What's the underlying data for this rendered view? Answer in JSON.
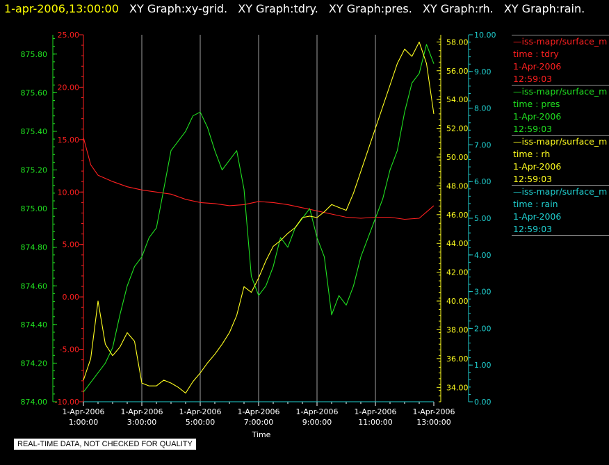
{
  "header": {
    "timestamp": "1-apr-2006,13:00:00",
    "graphs": [
      "XY Graph:xy-grid.",
      "XY Graph:tdry.",
      "XY Graph:pres.",
      "XY Graph:rh.",
      "XY Graph:rain."
    ]
  },
  "disclaimer": "REAL-TIME DATA, NOT CHECKED FOR QUALITY",
  "colors": {
    "tdry": "#ff2020",
    "pres": "#20e020",
    "rh": "#ffff20",
    "rain": "#20d0d0",
    "grid": "#c8c8c8"
  },
  "legend": [
    {
      "source": "iss-mapr/surface_m",
      "field": "time : tdry",
      "date": "1-Apr-2006",
      "time": "12:59:03",
      "color": "#ff2020"
    },
    {
      "source": "iss-mapr/surface_m",
      "field": "time : pres",
      "date": "1-Apr-2006",
      "time": "12:59:03",
      "color": "#20e020"
    },
    {
      "source": "iss-mapr/surface_m",
      "field": "time : rh",
      "date": "1-Apr-2006",
      "time": "12:59:03",
      "color": "#ffff20"
    },
    {
      "source": "iss-mapr/surface_m",
      "field": "time : rain",
      "date": "1-Apr-2006",
      "time": "12:59:03",
      "color": "#20d0d0"
    }
  ],
  "chart_data": {
    "type": "line",
    "xlabel": "Time",
    "x_tick_labels": [
      [
        "1-Apr-2006",
        "1:00:00"
      ],
      [
        "1-Apr-2006",
        "3:00:00"
      ],
      [
        "1-Apr-2006",
        "5:00:00"
      ],
      [
        "1-Apr-2006",
        "7:00:00"
      ],
      [
        "1-Apr-2006",
        "9:00:00"
      ],
      [
        "1-Apr-2006",
        "11:00:00"
      ],
      [
        "1-Apr-2006",
        "13:00:00"
      ]
    ],
    "x_hours": [
      1,
      3,
      5,
      7,
      9,
      11,
      13
    ],
    "xlim": [
      "01:00:00",
      "13:00:00"
    ],
    "grid": "vertical lines at x ticks",
    "axes": {
      "tdry": {
        "ylim": [
          -10,
          25
        ],
        "ticks": [
          "25.00",
          "20.00",
          "15.00",
          "10.00",
          "5.00",
          "0.00",
          "-5.00",
          "-10.00"
        ]
      },
      "pres": {
        "ylim": [
          874.0,
          875.9
        ],
        "ticks": [
          "875.80",
          "875.60",
          "875.40",
          "875.20",
          "875.00",
          "874.80",
          "874.60",
          "874.40",
          "874.20",
          "874.00"
        ]
      },
      "rh": {
        "ylim": [
          33.0,
          58.5
        ],
        "ticks": [
          "58.00",
          "56.00",
          "54.00",
          "52.00",
          "50.00",
          "48.00",
          "46.00",
          "44.00",
          "42.00",
          "40.00",
          "38.00",
          "36.00",
          "34.00"
        ]
      },
      "rain": {
        "ylim": [
          0,
          10
        ],
        "ticks": [
          "10.00",
          "9.00",
          "8.00",
          "7.00",
          "6.00",
          "5.00",
          "4.00",
          "3.00",
          "2.00",
          "1.00",
          "0.00"
        ]
      }
    },
    "series": [
      {
        "name": "time : tdry",
        "x": [
          1.0,
          1.25,
          1.5,
          2.0,
          2.5,
          3.0,
          3.5,
          4.0,
          4.5,
          5.0,
          5.5,
          6.0,
          6.5,
          7.0,
          7.5,
          8.0,
          8.5,
          9.0,
          9.5,
          10.0,
          10.5,
          11.0,
          11.5,
          12.0,
          12.5,
          13.0
        ],
        "values": [
          15.2,
          12.6,
          11.6,
          11.0,
          10.5,
          10.2,
          10.0,
          9.8,
          9.3,
          9.0,
          8.9,
          8.7,
          8.8,
          9.1,
          9.0,
          8.8,
          8.5,
          8.2,
          7.9,
          7.6,
          7.5,
          7.6,
          7.6,
          7.4,
          7.5,
          8.7
        ]
      },
      {
        "name": "time : pres",
        "x": [
          1.0,
          1.25,
          1.5,
          1.75,
          2.0,
          2.25,
          2.5,
          2.75,
          3.0,
          3.25,
          3.5,
          3.75,
          4.0,
          4.25,
          4.5,
          4.75,
          5.0,
          5.25,
          5.5,
          5.75,
          6.0,
          6.25,
          6.5,
          6.75,
          7.0,
          7.25,
          7.5,
          7.75,
          8.0,
          8.25,
          8.5,
          8.75,
          9.0,
          9.25,
          9.5,
          9.75,
          10.0,
          10.25,
          10.5,
          10.75,
          11.0,
          11.25,
          11.5,
          11.75,
          12.0,
          12.25,
          12.5,
          12.75,
          13.0
        ],
        "values": [
          874.05,
          874.1,
          874.15,
          874.2,
          874.28,
          874.45,
          874.6,
          874.7,
          874.75,
          874.85,
          874.9,
          875.1,
          875.3,
          875.35,
          875.4,
          875.48,
          875.5,
          875.42,
          875.3,
          875.2,
          875.25,
          875.3,
          875.1,
          874.65,
          874.55,
          874.6,
          874.7,
          874.85,
          874.8,
          874.9,
          874.95,
          875.0,
          874.85,
          874.75,
          874.45,
          874.55,
          874.5,
          874.6,
          874.75,
          874.85,
          874.95,
          875.05,
          875.2,
          875.3,
          875.5,
          875.65,
          875.7,
          875.85,
          875.75
        ]
      },
      {
        "name": "time : rh",
        "x": [
          1.0,
          1.25,
          1.5,
          1.75,
          2.0,
          2.25,
          2.5,
          2.75,
          3.0,
          3.25,
          3.5,
          3.75,
          4.0,
          4.25,
          4.5,
          4.75,
          5.0,
          5.25,
          5.5,
          5.75,
          6.0,
          6.25,
          6.5,
          6.75,
          7.0,
          7.25,
          7.5,
          7.75,
          8.0,
          8.25,
          8.5,
          8.75,
          9.0,
          9.25,
          9.5,
          9.75,
          10.0,
          10.25,
          10.5,
          10.75,
          11.0,
          11.25,
          11.5,
          11.75,
          12.0,
          12.25,
          12.5,
          12.75,
          13.0
        ],
        "values": [
          34.5,
          36.0,
          40.0,
          37.0,
          36.2,
          36.8,
          37.8,
          37.2,
          34.3,
          34.1,
          34.1,
          34.5,
          34.3,
          34.0,
          33.6,
          34.4,
          35.0,
          35.7,
          36.3,
          37.0,
          37.8,
          39.0,
          41.0,
          40.6,
          41.6,
          42.8,
          43.8,
          44.2,
          44.7,
          45.1,
          45.8,
          45.9,
          45.8,
          46.2,
          46.7,
          46.5,
          46.3,
          47.5,
          49.0,
          50.5,
          52.0,
          53.5,
          55.0,
          56.5,
          57.5,
          57.0,
          58.0,
          56.5,
          53.0
        ]
      },
      {
        "name": "time : rain",
        "x": [
          1.0,
          13.0
        ],
        "values": [
          0.0,
          0.0
        ]
      }
    ]
  }
}
